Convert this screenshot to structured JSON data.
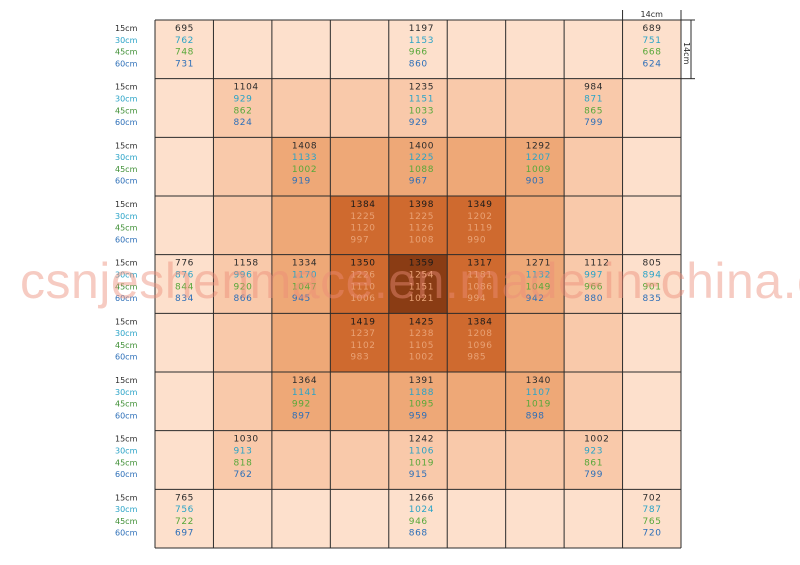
{
  "chart_data": {
    "type": "heatmap",
    "title": "",
    "depth_labels": [
      "15cm",
      "30cm",
      "45cm",
      "60cm"
    ],
    "cell_dimension_label": "14cm",
    "rows": 9,
    "cols": 9,
    "cells": [
      {
        "row": 0,
        "col": 0,
        "values": [
          695,
          762,
          748,
          731
        ]
      },
      {
        "row": 0,
        "col": 4,
        "values": [
          1197,
          1153,
          966,
          860
        ]
      },
      {
        "row": 0,
        "col": 8,
        "values": [
          689,
          751,
          668,
          624
        ]
      },
      {
        "row": 1,
        "col": 1,
        "values": [
          1104,
          929,
          862,
          824
        ]
      },
      {
        "row": 1,
        "col": 4,
        "values": [
          1235,
          1151,
          1033,
          929
        ]
      },
      {
        "row": 1,
        "col": 7,
        "values": [
          984,
          871,
          865,
          799
        ]
      },
      {
        "row": 2,
        "col": 2,
        "values": [
          1408,
          1133,
          1002,
          919
        ]
      },
      {
        "row": 2,
        "col": 4,
        "values": [
          1400,
          1225,
          1088,
          967
        ]
      },
      {
        "row": 2,
        "col": 6,
        "values": [
          1292,
          1207,
          1009,
          903
        ]
      },
      {
        "row": 3,
        "col": 3,
        "values": [
          1384,
          1225,
          1120,
          997
        ]
      },
      {
        "row": 3,
        "col": 4,
        "values": [
          1398,
          1225,
          1126,
          1008
        ]
      },
      {
        "row": 3,
        "col": 5,
        "values": [
          1349,
          1202,
          1119,
          990
        ]
      },
      {
        "row": 4,
        "col": 0,
        "values": [
          776,
          876,
          844,
          834
        ]
      },
      {
        "row": 4,
        "col": 1,
        "values": [
          1158,
          996,
          920,
          866
        ]
      },
      {
        "row": 4,
        "col": 2,
        "values": [
          1334,
          1170,
          1047,
          945
        ]
      },
      {
        "row": 4,
        "col": 3,
        "values": [
          1350,
          1226,
          1110,
          1006
        ]
      },
      {
        "row": 4,
        "col": 4,
        "values": [
          1359,
          1254,
          1151,
          1021
        ]
      },
      {
        "row": 4,
        "col": 5,
        "values": [
          1317,
          1181,
          1086,
          994
        ]
      },
      {
        "row": 4,
        "col": 6,
        "values": [
          1271,
          1132,
          1049,
          942
        ]
      },
      {
        "row": 4,
        "col": 7,
        "values": [
          1112,
          997,
          966,
          880
        ]
      },
      {
        "row": 4,
        "col": 8,
        "values": [
          805,
          894,
          901,
          835
        ]
      },
      {
        "row": 5,
        "col": 3,
        "values": [
          1419,
          1237,
          1102,
          983
        ]
      },
      {
        "row": 5,
        "col": 4,
        "values": [
          1425,
          1238,
          1105,
          1002
        ]
      },
      {
        "row": 5,
        "col": 5,
        "values": [
          1384,
          1208,
          1096,
          985
        ]
      },
      {
        "row": 6,
        "col": 2,
        "values": [
          1364,
          1141,
          992,
          897
        ]
      },
      {
        "row": 6,
        "col": 4,
        "values": [
          1391,
          1188,
          1095,
          959
        ]
      },
      {
        "row": 6,
        "col": 6,
        "values": [
          1340,
          1107,
          1019,
          898
        ]
      },
      {
        "row": 7,
        "col": 1,
        "values": [
          1030,
          913,
          818,
          762
        ]
      },
      {
        "row": 7,
        "col": 4,
        "values": [
          1242,
          1106,
          1019,
          915
        ]
      },
      {
        "row": 7,
        "col": 7,
        "values": [
          1002,
          923,
          861,
          799
        ]
      },
      {
        "row": 8,
        "col": 0,
        "values": [
          765,
          756,
          722,
          697
        ]
      },
      {
        "row": 8,
        "col": 4,
        "values": [
          1266,
          1024,
          946,
          868
        ]
      },
      {
        "row": 8,
        "col": 8,
        "values": [
          702,
          787,
          765,
          720
        ]
      }
    ],
    "shading_levels": [
      [
        0,
        0,
        0,
        0,
        0,
        0,
        0,
        0,
        0
      ],
      [
        0,
        1,
        1,
        1,
        1,
        1,
        1,
        1,
        0
      ],
      [
        0,
        1,
        2,
        2,
        2,
        2,
        2,
        1,
        0
      ],
      [
        0,
        1,
        2,
        3,
        3,
        3,
        2,
        1,
        0
      ],
      [
        0,
        1,
        2,
        3,
        4,
        3,
        2,
        1,
        0
      ],
      [
        0,
        1,
        2,
        3,
        3,
        3,
        2,
        1,
        0
      ],
      [
        0,
        1,
        2,
        2,
        2,
        2,
        2,
        1,
        0
      ],
      [
        0,
        1,
        1,
        1,
        1,
        1,
        1,
        1,
        0
      ],
      [
        0,
        0,
        0,
        0,
        0,
        0,
        0,
        0,
        0
      ]
    ],
    "shading_colors": [
      "#fde0cc",
      "#f9c9aa",
      "#eea877",
      "#cf6a2f",
      "#8a3c14"
    ],
    "depth_colors": [
      "#2b2b2b",
      "#2aa3c7",
      "#58a83a",
      "#2d6fb8"
    ],
    "label_colors": [
      "#2b2b2b",
      "#2aa3c7",
      "#3f8f35",
      "#2d6fb8"
    ],
    "grid": true
  },
  "watermark": {
    "text": "csnjeshenmace.en.made-in-china.com",
    "color": "#eb8c78"
  }
}
